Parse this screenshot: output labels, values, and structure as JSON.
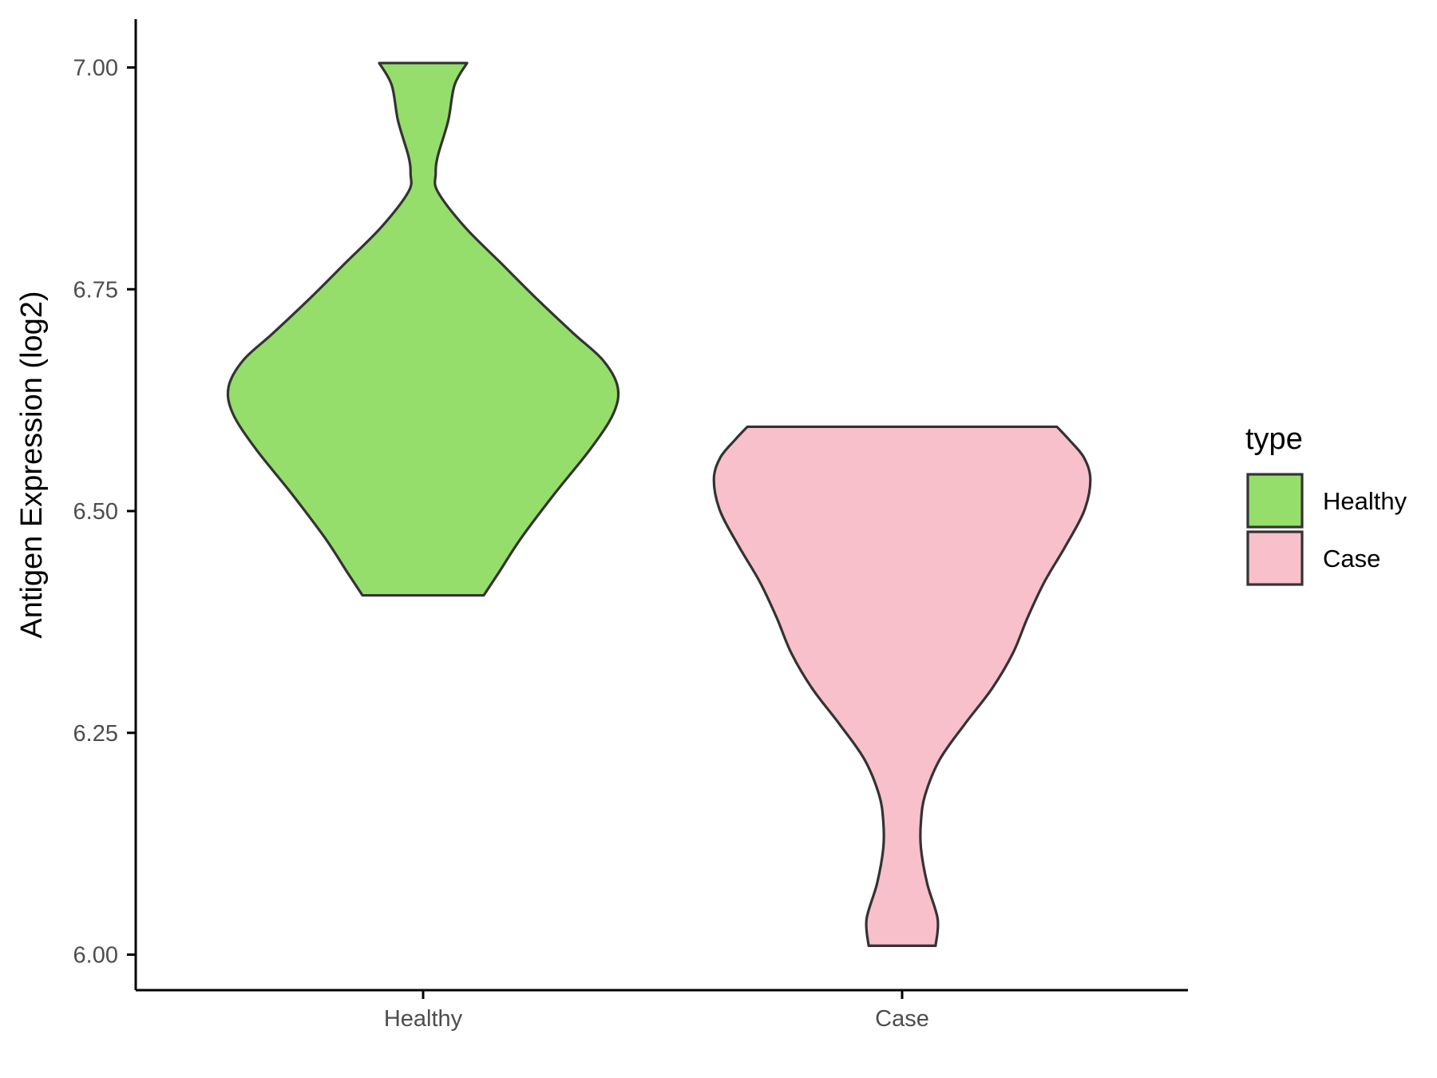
{
  "chart_data": {
    "type": "violin",
    "title": "",
    "xlabel": "",
    "ylabel": "Antigen Expression (log2)",
    "ylim": [
      5.96,
      7.05
    ],
    "y_ticks": [
      "6.00",
      "6.25",
      "6.50",
      "6.75",
      "7.00"
    ],
    "y_tick_values": [
      6.0,
      6.25,
      6.5,
      6.75,
      7.0
    ],
    "categories": [
      "Healthy",
      "Case"
    ],
    "grid": false,
    "legend": {
      "title": "type",
      "placement": "right",
      "entries": [
        "Healthy",
        "Case"
      ]
    },
    "series": [
      {
        "name": "Healthy",
        "color": "#95de6b",
        "min": 6.405,
        "max": 7.005,
        "density_profile": [
          [
            6.405,
            0.29
          ],
          [
            6.43,
            0.36
          ],
          [
            6.47,
            0.47
          ],
          [
            6.52,
            0.63
          ],
          [
            6.57,
            0.8
          ],
          [
            6.61,
            0.91
          ],
          [
            6.64,
            0.93
          ],
          [
            6.67,
            0.86
          ],
          [
            6.7,
            0.72
          ],
          [
            6.74,
            0.54
          ],
          [
            6.78,
            0.37
          ],
          [
            6.82,
            0.2
          ],
          [
            6.86,
            0.07
          ],
          [
            6.88,
            0.06
          ],
          [
            6.9,
            0.07
          ],
          [
            6.94,
            0.12
          ],
          [
            6.98,
            0.15
          ],
          [
            7.005,
            0.21
          ]
        ]
      },
      {
        "name": "Case",
        "color": "#f8c0cb",
        "min": 6.01,
        "max": 6.595,
        "density_profile": [
          [
            6.01,
            0.16
          ],
          [
            6.04,
            0.17
          ],
          [
            6.08,
            0.12
          ],
          [
            6.12,
            0.09
          ],
          [
            6.15,
            0.09
          ],
          [
            6.18,
            0.11
          ],
          [
            6.22,
            0.18
          ],
          [
            6.26,
            0.3
          ],
          [
            6.3,
            0.43
          ],
          [
            6.34,
            0.53
          ],
          [
            6.38,
            0.6
          ],
          [
            6.42,
            0.68
          ],
          [
            6.46,
            0.78
          ],
          [
            6.5,
            0.87
          ],
          [
            6.535,
            0.9
          ],
          [
            6.56,
            0.87
          ],
          [
            6.58,
            0.8
          ],
          [
            6.595,
            0.74
          ]
        ]
      }
    ]
  }
}
